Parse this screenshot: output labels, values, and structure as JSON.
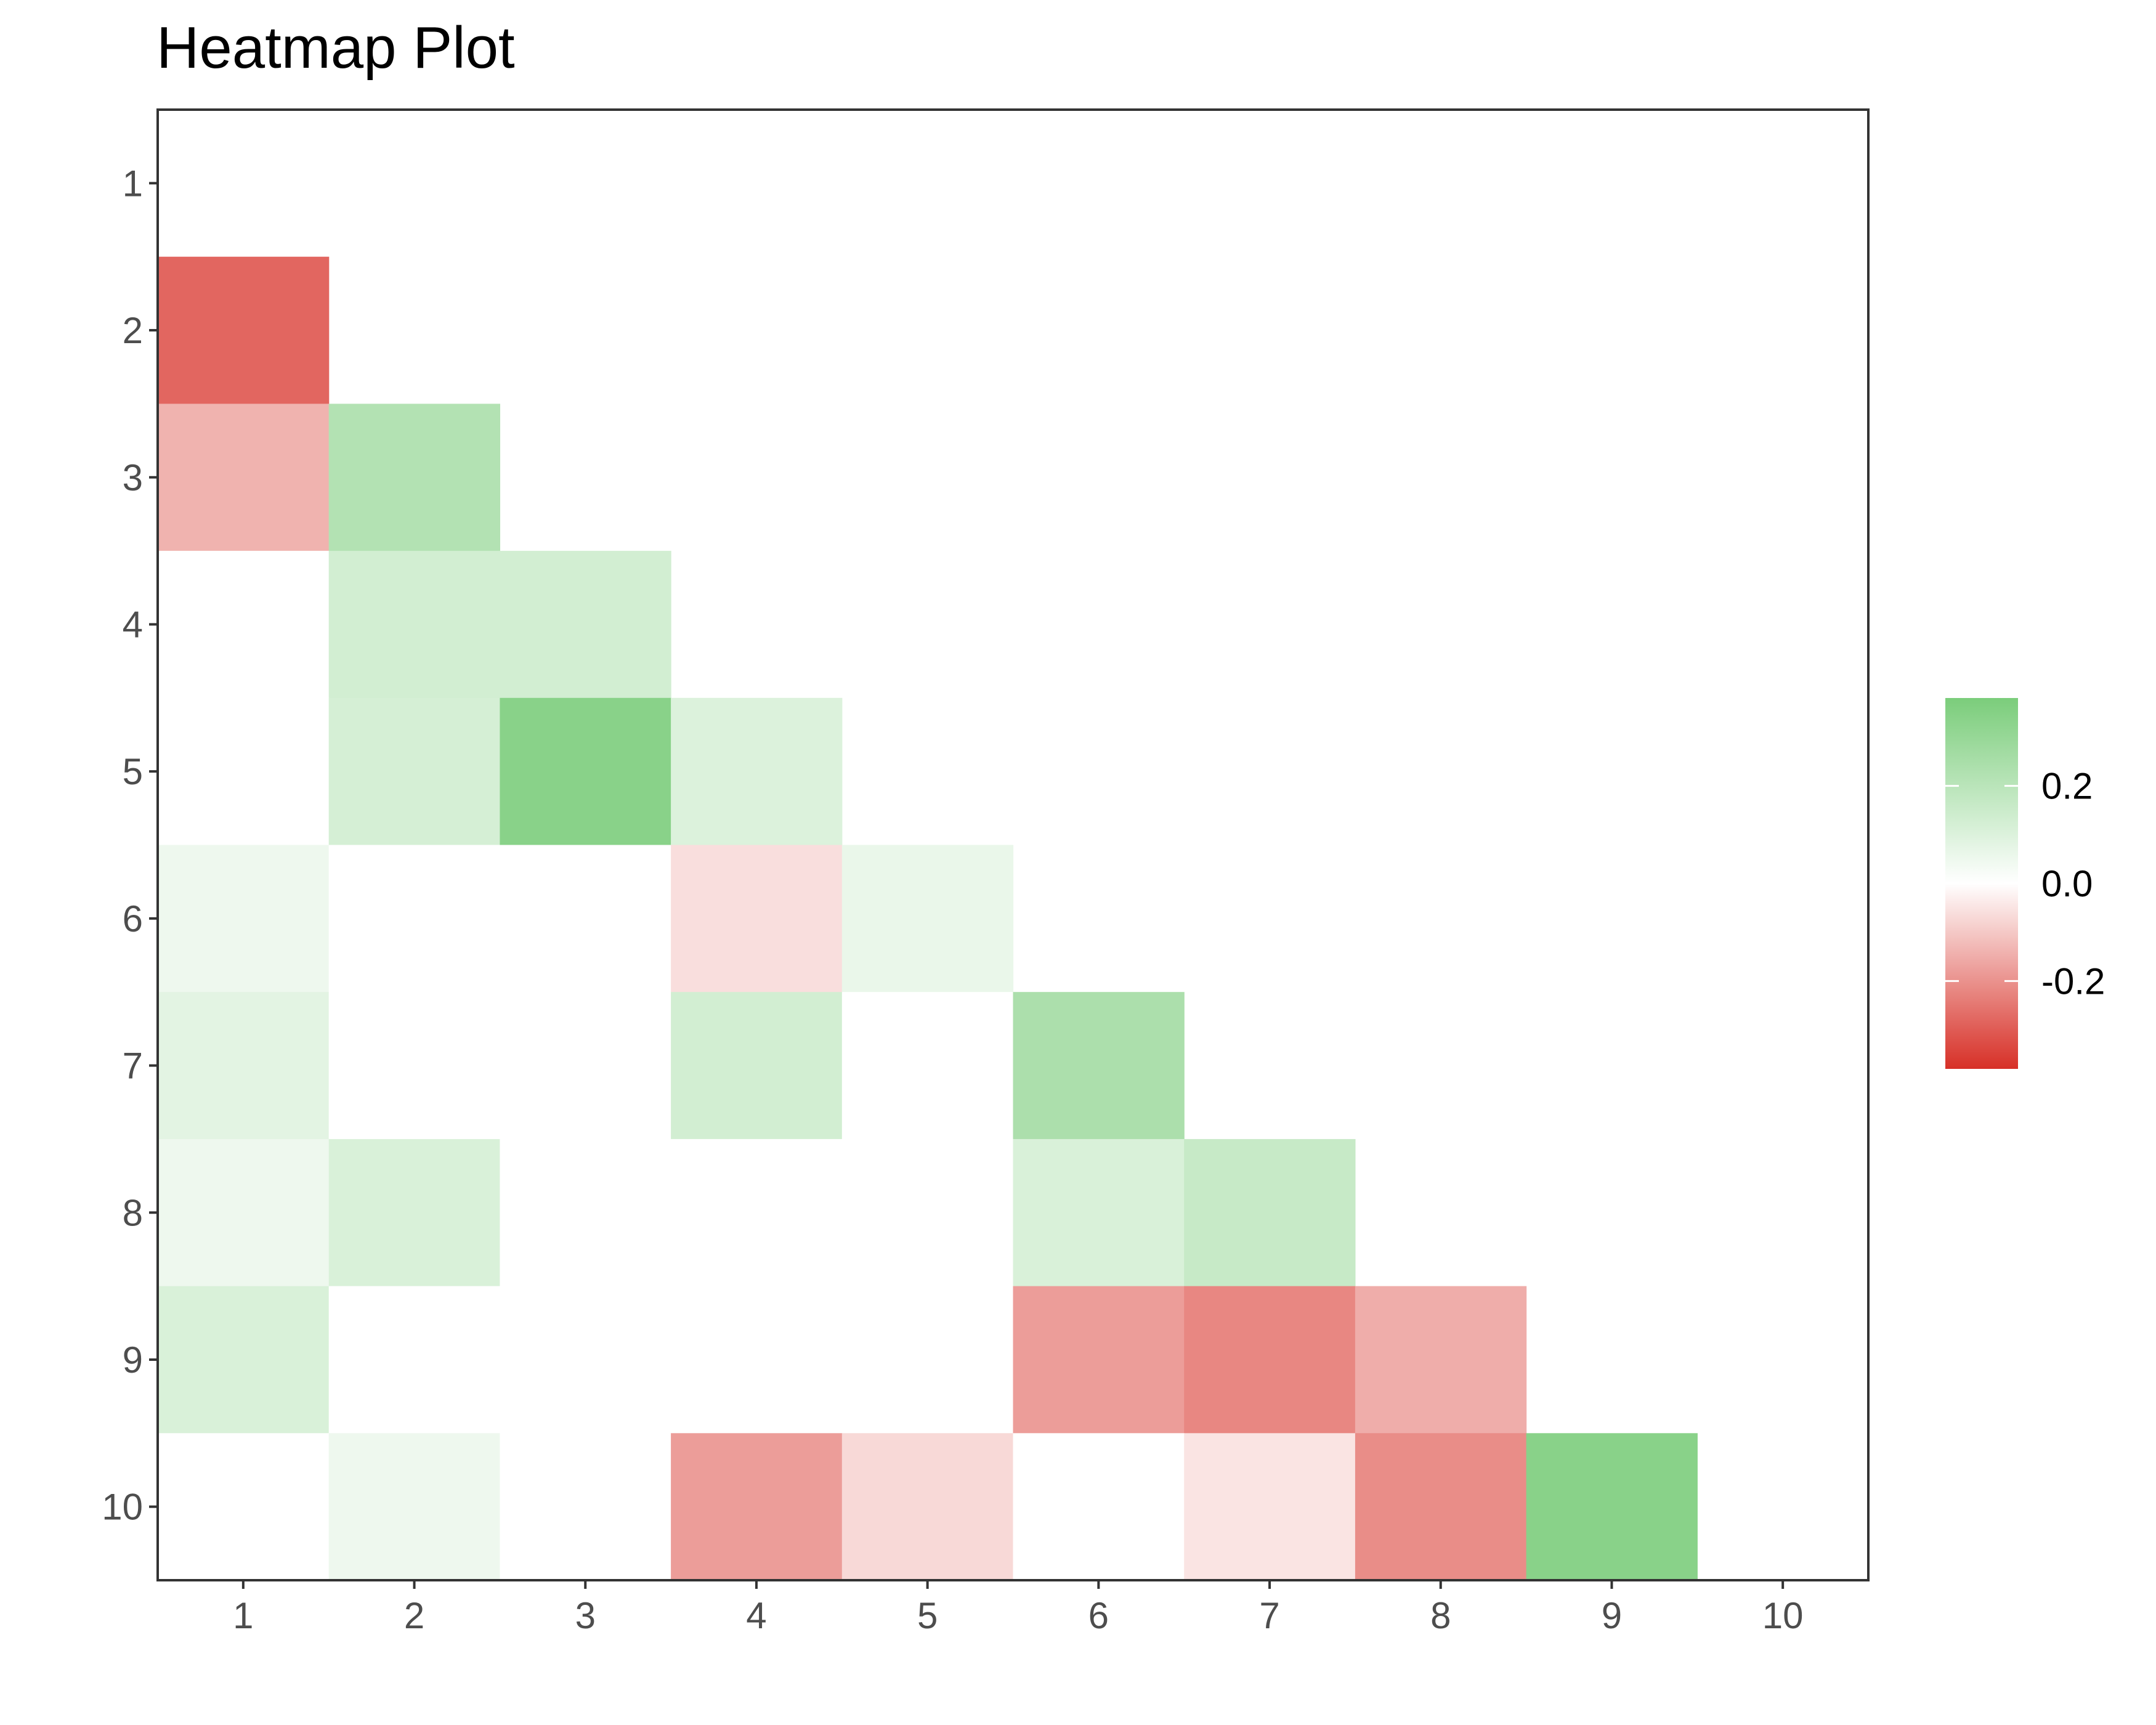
{
  "chart_data": {
    "type": "heatmap",
    "title": "Heatmap Plot",
    "xlabel": "",
    "ylabel": "",
    "x_categories": [
      "1",
      "2",
      "3",
      "4",
      "5",
      "6",
      "7",
      "8",
      "9",
      "10"
    ],
    "y_categories": [
      "1",
      "2",
      "3",
      "4",
      "5",
      "6",
      "7",
      "8",
      "9",
      "10"
    ],
    "y_order": "top-to-bottom",
    "grid": false,
    "legend": {
      "position": "right",
      "ticks": [
        "0.2",
        "0.0",
        "-0.2"
      ],
      "tick_values": [
        0.2,
        0.0,
        -0.2
      ],
      "range": [
        -0.38,
        0.38
      ],
      "colors": {
        "low": "#d73027",
        "mid": "#ffffff",
        "high": "#7bcd7b"
      }
    },
    "values": [
      [
        null,
        null,
        null,
        null,
        null,
        null,
        null,
        null,
        null,
        null
      ],
      [
        -0.28,
        null,
        null,
        null,
        null,
        null,
        null,
        null,
        null,
        null
      ],
      [
        -0.14,
        0.22,
        null,
        null,
        null,
        null,
        null,
        null,
        null,
        null
      ],
      [
        0.0,
        0.13,
        0.13,
        null,
        null,
        null,
        null,
        null,
        null,
        null
      ],
      [
        0.0,
        0.12,
        0.34,
        0.1,
        null,
        null,
        null,
        null,
        null,
        null
      ],
      [
        0.05,
        0.0,
        0.0,
        -0.06,
        0.06,
        null,
        null,
        null,
        null,
        null
      ],
      [
        0.08,
        0.0,
        0.0,
        0.13,
        0.0,
        0.24,
        null,
        null,
        null,
        null
      ],
      [
        0.05,
        0.11,
        0.0,
        0.0,
        0.0,
        0.11,
        0.16,
        null,
        null,
        null
      ],
      [
        0.11,
        0.0,
        0.0,
        0.0,
        0.0,
        -0.18,
        -0.22,
        -0.15,
        null,
        null
      ],
      [
        0.0,
        0.05,
        0.0,
        -0.18,
        -0.07,
        0.0,
        -0.05,
        -0.21,
        0.34,
        null
      ]
    ]
  }
}
